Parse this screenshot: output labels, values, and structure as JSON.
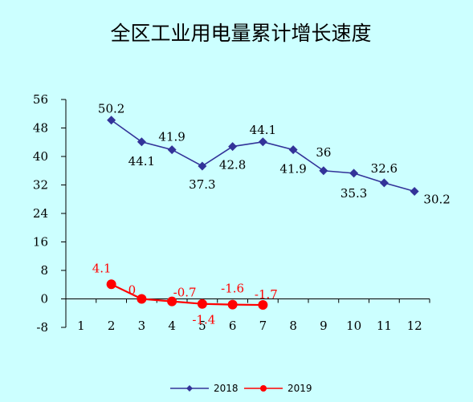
{
  "chart_data": {
    "type": "line",
    "title": "全区工业用电量累计增长速度",
    "xlabel": "",
    "ylabel": "",
    "x": [
      1,
      2,
      3,
      4,
      5,
      6,
      7,
      8,
      9,
      10,
      11,
      12
    ],
    "ylim": [
      -8,
      56
    ],
    "yticks": [
      -8,
      0,
      8,
      16,
      24,
      32,
      40,
      48,
      56
    ],
    "grid": false,
    "legend_position": "bottom",
    "series": [
      {
        "name": "2018",
        "color": "#333399",
        "marker": "diamond",
        "x": [
          2,
          3,
          4,
          5,
          6,
          7,
          8,
          9,
          10,
          11,
          12
        ],
        "values": [
          50.2,
          44.1,
          41.9,
          37.3,
          42.8,
          44.1,
          41.9,
          36,
          35.3,
          32.6,
          30.2
        ],
        "labels": [
          "50.2",
          "44.1",
          "41.9",
          "37.3",
          "42.8",
          "44.1",
          "41.9",
          "36",
          "35.3",
          "32.6",
          "30.2"
        ]
      },
      {
        "name": "2019",
        "color": "#ff0000",
        "marker": "circle",
        "x": [
          2,
          3,
          4,
          5,
          6,
          7
        ],
        "values": [
          4.1,
          0,
          -0.7,
          -1.4,
          -1.6,
          -1.7
        ],
        "labels": [
          "4.1",
          "0",
          "-0.7",
          "-1.4",
          "-1.6",
          "-1.7"
        ]
      }
    ]
  }
}
